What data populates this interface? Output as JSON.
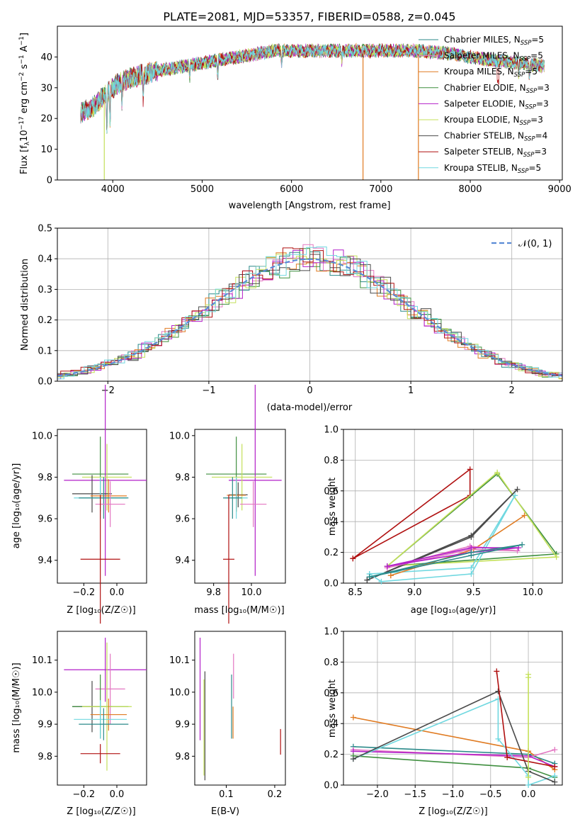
{
  "title": "PLATE=2081, MJD=53357, FIBERID=0588, z=0.045",
  "series": [
    {
      "name": "Chabrier MILES, N$_{SSP}$=5",
      "label": "Chabrier MILES, N",
      "sub": "SSP",
      "suffix": "=5",
      "color": "#2b8a8a"
    },
    {
      "name": "Salpeter MILES, N$_{SSP}$=5",
      "label": "Salpeter MILES, N",
      "sub": "SSP",
      "suffix": "=5",
      "color": "#e377c2"
    },
    {
      "name": "Kroupa MILES, N$_{SSP}$=5",
      "label": "Kroupa MILES, N",
      "sub": "SSP",
      "suffix": "=5",
      "color": "#e07b22"
    },
    {
      "name": "Chabrier ELODIE, N$_{SSP}$=3",
      "label": "Chabrier ELODIE, N",
      "sub": "SSP",
      "suffix": "=3",
      "color": "#3f8f3f"
    },
    {
      "name": "Salpeter ELODIE, N$_{SSP}$=3",
      "label": "Salpeter ELODIE, N",
      "sub": "SSP",
      "suffix": "=3",
      "color": "#b21fc9"
    },
    {
      "name": "Kroupa ELODIE, N$_{SSP}$=3",
      "label": "Kroupa ELODIE, N",
      "sub": "SSP",
      "suffix": "=3",
      "color": "#c4e05a"
    },
    {
      "name": "Chabrier STELIB, N$_{SSP}$=4",
      "label": "Chabrier STELIB, N",
      "sub": "SSP",
      "suffix": "=4",
      "color": "#4a4a4a"
    },
    {
      "name": "Salpeter STELIB, N$_{SSP}$=3",
      "label": "Salpeter STELIB, N",
      "sub": "SSP",
      "suffix": "=3",
      "color": "#b01010"
    },
    {
      "name": "Kroupa STELIB, N$_{SSP}$=5",
      "label": "Kroupa STELIB, N",
      "sub": "SSP",
      "suffix": "=5",
      "color": "#70d8e0"
    }
  ],
  "labels": {
    "spec_x": "wavelength [Angstrom, rest frame]",
    "hist_y": "Normed distribution",
    "hist_x": "(data-model)/error",
    "hist_legend": "𝒩(0, 1)",
    "mass_weight": "mass weight",
    "z_x": "Z [log₁₀(Z/Z☉)]",
    "age_y": "age  [log₁₀(age/yr)]",
    "mass_x": "mass [log₁₀(M/M☉)]",
    "age_x": "age  [log₁₀(age/yr)]",
    "mass_y": "mass [log₁₀(M/M☉)]",
    "ebv_x": "E(B-V)"
  },
  "chart_data": [
    {
      "id": "spectrum",
      "type": "line",
      "xlabel": "wavelength [Angstrom, rest frame]",
      "ylabel": "Flux [fλ10⁻¹⁷ erg cm⁻² s⁻¹ A⁻¹]",
      "xlim": [
        3380,
        9030
      ],
      "ylim": [
        0,
        50
      ],
      "xticks": [
        4000,
        5000,
        6000,
        7000,
        8000,
        9000
      ],
      "yticks": [
        0,
        10,
        20,
        30,
        40
      ],
      "continuum_x": [
        3650,
        3800,
        3950,
        4100,
        4300,
        4600,
        5000,
        5400,
        5800,
        6200,
        6600,
        7000,
        7400,
        7800,
        8200,
        8600,
        8800
      ],
      "continuum_y": [
        22,
        24,
        29,
        32,
        34,
        36,
        38,
        40,
        42,
        42,
        42,
        42,
        42,
        41,
        39,
        38,
        37
      ],
      "x_range": [
        3640,
        8830
      ],
      "dropouts": [
        {
          "series": "Kroupa ELODIE, N$_{SSP}$=3",
          "x": 3905
        },
        {
          "series": "Kroupa MILES, N$_{SSP}$=5",
          "x": 6800
        },
        {
          "series": "Kroupa MILES, N$_{SSP}$=5",
          "x": 7420
        }
      ],
      "legend_loc": "right"
    },
    {
      "id": "residuals",
      "type": "line",
      "xlabel": "(data-model)/error",
      "ylabel": "Normed distribution",
      "xlim": [
        -2.5,
        2.5
      ],
      "ylim": [
        0,
        0.5
      ],
      "xticks": [
        -2,
        -1,
        0,
        1,
        2
      ],
      "yticks": [
        0,
        0.1,
        0.2,
        0.3,
        0.4,
        0.5
      ],
      "bin_width": 0.1,
      "reference": {
        "name": "𝒩(0, 1)",
        "mu": 0,
        "sigma": 1,
        "color": "#5b8bd6"
      },
      "grid": true,
      "legend_loc": "top-right"
    },
    {
      "id": "z_age",
      "type": "errorbar",
      "xlabel": "Z [log₁₀(Z/Z☉)]",
      "ylabel": "age  [log₁₀(age/yr)]",
      "xlim": [
        -0.36,
        0.18
      ],
      "ylim": [
        9.29,
        10.03
      ],
      "xticks": [
        -0.2,
        0.0
      ],
      "yticks": [
        9.4,
        9.6,
        9.8,
        10.0
      ],
      "points": [
        {
          "c": 3,
          "x": -0.1,
          "xerr": 0.17,
          "y": 9.815,
          "yerr": 0.18
        },
        {
          "c": 4,
          "x": -0.07,
          "xerr": 0.25,
          "y": 9.785,
          "yerr": 0.46
        },
        {
          "c": 5,
          "x": -0.06,
          "xerr": 0.15,
          "y": 9.8,
          "yerr": 0.16
        },
        {
          "c": 6,
          "x": -0.15,
          "xerr": 0.12,
          "y": 9.72,
          "yerr": 0.09
        },
        {
          "c": 2,
          "x": -0.05,
          "xerr": 0.11,
          "y": 9.71,
          "yerr": 0.08
        },
        {
          "c": 8,
          "x": -0.1,
          "xerr": 0.16,
          "y": 9.7,
          "yerr": 0.1
        },
        {
          "c": 0,
          "x": -0.08,
          "xerr": 0.15,
          "y": 9.7,
          "yerr": 0.1
        },
        {
          "c": 1,
          "x": -0.04,
          "xerr": 0.09,
          "y": 9.67,
          "yerr": 0.11
        },
        {
          "c": 7,
          "x": -0.1,
          "xerr": 0.12,
          "y": 9.405,
          "yerr": 0.31
        }
      ]
    },
    {
      "id": "mass_age",
      "type": "errorbar",
      "xlabel": "mass [log₁₀(M/M☉)]",
      "ylabel": "",
      "xlim": [
        9.7,
        10.18
      ],
      "ylim": [
        9.29,
        10.03
      ],
      "xticks": [
        9.8,
        10.0
      ],
      "yticks": [
        9.4,
        9.6,
        9.8,
        10.0
      ],
      "points": [
        {
          "c": 3,
          "x": 9.92,
          "xerr": 0.16,
          "y": 9.815,
          "yerr": 0.18
        },
        {
          "c": 4,
          "x": 10.02,
          "xerr": 0.14,
          "y": 9.785,
          "yerr": 0.46
        },
        {
          "c": 5,
          "x": 9.95,
          "xerr": 0.16,
          "y": 9.8,
          "yerr": 0.16
        },
        {
          "c": 6,
          "x": 9.93,
          "xerr": 0.05,
          "y": 9.715,
          "yerr": 0.06
        },
        {
          "c": 2,
          "x": 9.92,
          "xerr": 0.05,
          "y": 9.713,
          "yerr": 0.08
        },
        {
          "c": 8,
          "x": 9.92,
          "xerr": 0.06,
          "y": 9.7,
          "yerr": 0.1
        },
        {
          "c": 0,
          "x": 9.9,
          "xerr": 0.05,
          "y": 9.7,
          "yerr": 0.1
        },
        {
          "c": 1,
          "x": 10.01,
          "xerr": 0.07,
          "y": 9.67,
          "yerr": 0.11
        },
        {
          "c": 7,
          "x": 9.88,
          "xerr": 0.03,
          "y": 9.405,
          "yerr": 0.31
        }
      ]
    },
    {
      "id": "age_weight",
      "type": "line",
      "xlabel": "age  [log₁₀(age/yr)]",
      "ylabel": "mass weight",
      "xlim": [
        8.4,
        10.25
      ],
      "ylim": [
        0,
        1.0
      ],
      "xticks": [
        8.5,
        9.0,
        9.5,
        10.0
      ],
      "yticks": [
        0,
        0.2,
        0.4,
        0.6,
        0.8,
        1.0
      ],
      "grid": true,
      "lines": [
        {
          "c": 7,
          "x": [
            8.48,
            9.47,
            9.47,
            8.48
          ],
          "y": [
            0.16,
            0.74,
            0.57,
            0.16
          ]
        },
        {
          "c": 3,
          "x": [
            8.77,
            9.7,
            10.2,
            8.77
          ],
          "y": [
            0.11,
            0.71,
            0.19,
            0.11
          ]
        },
        {
          "c": 5,
          "x": [
            8.77,
            9.7,
            10.2,
            8.77
          ],
          "y": [
            0.11,
            0.72,
            0.17,
            0.11
          ]
        },
        {
          "c": 6,
          "x": [
            8.6,
            9.48,
            9.87,
            9.48,
            8.6
          ],
          "y": [
            0.02,
            0.3,
            0.61,
            0.31,
            0.02
          ]
        },
        {
          "c": 8,
          "x": [
            8.62,
            8.72,
            9.48,
            9.85,
            9.48,
            8.62
          ],
          "y": [
            0.06,
            0.01,
            0.06,
            0.57,
            0.1,
            0.06
          ]
        },
        {
          "c": 2,
          "x": [
            8.8,
            9.5,
            9.93,
            9.5,
            8.8
          ],
          "y": [
            0.05,
            0.22,
            0.44,
            0.22,
            0.05
          ]
        },
        {
          "c": 1,
          "x": [
            8.77,
            9.47,
            9.87,
            9.47,
            8.77
          ],
          "y": [
            0.1,
            0.24,
            0.21,
            0.22,
            0.1
          ]
        },
        {
          "c": 4,
          "x": [
            8.77,
            9.48,
            9.88,
            9.48,
            8.77
          ],
          "y": [
            0.11,
            0.23,
            0.23,
            0.2,
            0.11
          ]
        },
        {
          "c": 0,
          "x": [
            8.62,
            9.48,
            9.91,
            9.48,
            8.62
          ],
          "y": [
            0.04,
            0.2,
            0.25,
            0.18,
            0.04
          ]
        }
      ]
    },
    {
      "id": "z_mass",
      "type": "errorbar",
      "xlabel": "Z [log₁₀(Z/Z☉)]",
      "ylabel": "mass [log₁₀(M/M☉)]",
      "xlim": [
        -0.36,
        0.18
      ],
      "ylim": [
        9.71,
        10.19
      ],
      "xticks": [
        -0.2,
        0.0
      ],
      "yticks": [
        9.8,
        9.9,
        10.0,
        10.1
      ],
      "points": [
        {
          "c": 4,
          "x": -0.07,
          "xerr": 0.25,
          "y": 10.07,
          "yerr": 0.1
        },
        {
          "c": 1,
          "x": -0.04,
          "xerr": 0.09,
          "y": 10.01,
          "yerr": 0.11
        },
        {
          "c": 6,
          "x": -0.15,
          "xerr": 0.12,
          "y": 9.955,
          "yerr": 0.08
        },
        {
          "c": 3,
          "x": -0.1,
          "xerr": 0.17,
          "y": 9.955,
          "yerr": 0.1
        },
        {
          "c": 5,
          "x": -0.06,
          "xerr": 0.15,
          "y": 9.955,
          "yerr": 0.2
        },
        {
          "c": 2,
          "x": -0.05,
          "xerr": 0.11,
          "y": 9.93,
          "yerr": 0.05
        },
        {
          "c": 8,
          "x": -0.1,
          "xerr": 0.16,
          "y": 9.915,
          "yerr": 0.06
        },
        {
          "c": 0,
          "x": -0.08,
          "xerr": 0.15,
          "y": 9.9,
          "yerr": 0.05
        },
        {
          "c": 7,
          "x": -0.1,
          "xerr": 0.12,
          "y": 9.808,
          "yerr": 0.03
        }
      ]
    },
    {
      "id": "ebv_mass",
      "type": "errorbar",
      "xlabel": "E(B-V)",
      "ylabel": "",
      "xlim": [
        0.035,
        0.222
      ],
      "ylim": [
        9.71,
        10.19
      ],
      "xticks": [
        0.1,
        0.2
      ],
      "yticks": [
        9.8,
        9.9,
        10.0,
        10.1
      ],
      "points": [
        {
          "c": 4,
          "x": 0.046,
          "xerr": 0,
          "y": 10.01,
          "yerr": 0.16
        },
        {
          "c": 6,
          "x": 0.056,
          "xerr": 0,
          "y": 9.895,
          "yerr": 0.17
        },
        {
          "c": 5,
          "x": 0.054,
          "xerr": 0,
          "y": 9.89,
          "yerr": 0.15
        },
        {
          "c": 0,
          "x": 0.111,
          "xerr": 0,
          "y": 9.955,
          "yerr": 0.1
        },
        {
          "c": 2,
          "x": 0.114,
          "xerr": 0,
          "y": 9.905,
          "yerr": 0.05
        },
        {
          "c": 1,
          "x": 0.115,
          "xerr": 0,
          "y": 10.05,
          "yerr": 0.07
        },
        {
          "c": 7,
          "x": 0.212,
          "xerr": 0,
          "y": 9.845,
          "yerr": 0.04
        }
      ]
    },
    {
      "id": "z_weight",
      "type": "line",
      "xlabel": "Z [log₁₀(Z/Z☉)]",
      "ylabel": "mass weight",
      "xlim": [
        -2.45,
        0.45
      ],
      "ylim": [
        0,
        1.0
      ],
      "xticks": [
        -2.0,
        -1.5,
        -1.0,
        -0.5,
        0.0
      ],
      "yticks": [
        0,
        0.2,
        0.4,
        0.6,
        0.8,
        1.0
      ],
      "grid": true,
      "lines": [
        {
          "c": 2,
          "x": [
            -2.32,
            0.0,
            0.0,
            0.35
          ],
          "y": [
            0.44,
            0.22,
            0.22,
            0.1
          ]
        },
        {
          "c": 0,
          "x": [
            -2.32,
            0.0,
            0.0,
            0.35
          ],
          "y": [
            0.25,
            0.2,
            0.2,
            0.14
          ]
        },
        {
          "c": 1,
          "x": [
            -2.32,
            0.0,
            0.0,
            0.35
          ],
          "y": [
            0.23,
            0.18,
            0.18,
            0.23
          ]
        },
        {
          "c": 4,
          "x": [
            -2.32,
            0.0,
            0.0,
            0.35
          ],
          "y": [
            0.22,
            0.19,
            0.19,
            0.12
          ]
        },
        {
          "c": 3,
          "x": [
            -2.32,
            0.0,
            0.0,
            0.35
          ],
          "y": [
            0.19,
            0.11,
            0.11,
            0.05
          ]
        },
        {
          "c": 8,
          "x": [
            -2.32,
            -0.4,
            -0.4,
            0.0,
            0.0,
            0.35
          ],
          "y": [
            0.17,
            0.56,
            0.3,
            0.06,
            0.0,
            0.06
          ]
        },
        {
          "c": 6,
          "x": [
            -2.32,
            -0.4,
            0.0,
            0.35
          ],
          "y": [
            0.17,
            0.61,
            0.09,
            0.02
          ]
        },
        {
          "c": 7,
          "x": [
            -0.42,
            -0.28,
            0.35
          ],
          "y": [
            0.74,
            0.18,
            0.12
          ]
        },
        {
          "c": 5,
          "x": [
            0.0,
            0.0,
            0.0
          ],
          "y": [
            0.72,
            0.7,
            0.05
          ]
        }
      ]
    }
  ]
}
